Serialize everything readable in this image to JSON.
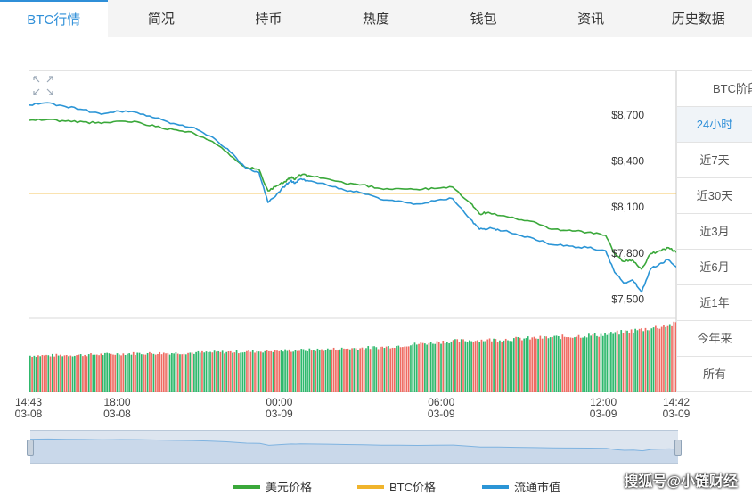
{
  "tabs": [
    {
      "label": "BTC行情",
      "active": true
    },
    {
      "label": "简况"
    },
    {
      "label": "持币"
    },
    {
      "label": "热度"
    },
    {
      "label": "钱包"
    },
    {
      "label": "资讯"
    },
    {
      "label": "历史数据"
    }
  ],
  "side_panel": {
    "title": "BTC阶段",
    "items": [
      {
        "label": "24小时",
        "active": true
      },
      {
        "label": "近7天"
      },
      {
        "label": "近30天"
      },
      {
        "label": "近3月"
      },
      {
        "label": "近6月"
      },
      {
        "label": "近1年"
      },
      {
        "label": "今年来"
      },
      {
        "label": "所有"
      }
    ]
  },
  "chart_data": {
    "type": "line",
    "ylim": [
      7450,
      8950
    ],
    "y_ticks": [
      {
        "value": 8700,
        "label": "$8,700"
      },
      {
        "value": 8400,
        "label": "$8,400"
      },
      {
        "value": 8100,
        "label": "$8,100"
      },
      {
        "value": 7800,
        "label": "$7,800"
      },
      {
        "value": 7500,
        "label": "$7,500"
      }
    ],
    "x_range": [
      0,
      1439
    ],
    "x_ticks": [
      {
        "minute": 0,
        "time": "14:43",
        "date": "03-08"
      },
      {
        "minute": 197,
        "time": "18:00",
        "date": "03-08"
      },
      {
        "minute": 557,
        "time": "00:00",
        "date": "03-09"
      },
      {
        "minute": 917,
        "time": "06:00",
        "date": "03-09"
      },
      {
        "minute": 1277,
        "time": "12:00",
        "date": "03-09"
      },
      {
        "minute": 1439,
        "time": "14:42",
        "date": "03-09"
      }
    ],
    "reference_line": {
      "series": "BTC价格",
      "value": 8225,
      "color": "#f0b42c"
    },
    "series": [
      {
        "name": "美元价格",
        "color": "#3aa83a",
        "x": [
          0,
          40,
          80,
          120,
          160,
          200,
          240,
          280,
          320,
          360,
          400,
          440,
          480,
          510,
          530,
          550,
          570,
          580,
          590,
          600,
          620,
          660,
          700,
          740,
          780,
          820,
          860,
          900,
          940,
          980,
          1000,
          1020,
          1040,
          1080,
          1120,
          1160,
          1200,
          1240,
          1280,
          1300,
          1320,
          1340,
          1360,
          1380,
          1400,
          1420,
          1439
        ],
        "values": [
          8700,
          8705,
          8695,
          8690,
          8680,
          8695,
          8690,
          8660,
          8640,
          8625,
          8570,
          8490,
          8395,
          8380,
          8240,
          8275,
          8300,
          8330,
          8315,
          8345,
          8340,
          8320,
          8290,
          8280,
          8255,
          8255,
          8250,
          8255,
          8265,
          8160,
          8090,
          8100,
          8080,
          8060,
          8040,
          7990,
          7985,
          7970,
          7950,
          7830,
          7780,
          7790,
          7730,
          7830,
          7850,
          7870,
          7835
        ]
      },
      {
        "name": "流通市值",
        "color": "#2b95d6",
        "x": [
          0,
          40,
          80,
          120,
          160,
          200,
          240,
          280,
          320,
          360,
          400,
          440,
          480,
          510,
          530,
          550,
          570,
          580,
          590,
          600,
          620,
          660,
          700,
          740,
          780,
          820,
          860,
          900,
          940,
          980,
          1000,
          1020,
          1040,
          1080,
          1120,
          1160,
          1200,
          1240,
          1280,
          1300,
          1320,
          1340,
          1360,
          1380,
          1400,
          1420,
          1439
        ],
        "values": [
          8800,
          8815,
          8790,
          8770,
          8740,
          8760,
          8750,
          8715,
          8680,
          8655,
          8600,
          8515,
          8390,
          8360,
          8165,
          8220,
          8280,
          8305,
          8290,
          8315,
          8305,
          8280,
          8245,
          8225,
          8185,
          8175,
          8155,
          8175,
          8190,
          8055,
          7990,
          7995,
          7990,
          7960,
          7930,
          7890,
          7880,
          7870,
          7850,
          7710,
          7640,
          7660,
          7580,
          7730,
          7765,
          7790,
          7740
        ]
      }
    ],
    "volume": {
      "up_color": "#2eb86c",
      "down_color": "#ef6b62",
      "count": 320,
      "base": [
        0.52,
        0.53,
        0.55,
        0.56,
        0.58,
        0.6,
        0.64,
        0.72,
        0.75,
        0.78,
        0.82,
        0.9,
        0.97
      ],
      "base_ranges": [
        0,
        25,
        50,
        80,
        110,
        140,
        175,
        205,
        235,
        260,
        285,
        305,
        320
      ],
      "down_share": 0.45
    }
  },
  "legend": [
    {
      "label": "美元价格",
      "color": "#3aa83a"
    },
    {
      "label": "BTC价格",
      "color": "#f0b42c"
    },
    {
      "label": "流通市值",
      "color": "#2b95d6"
    }
  ],
  "watermark": "搜狐号@小链财经"
}
